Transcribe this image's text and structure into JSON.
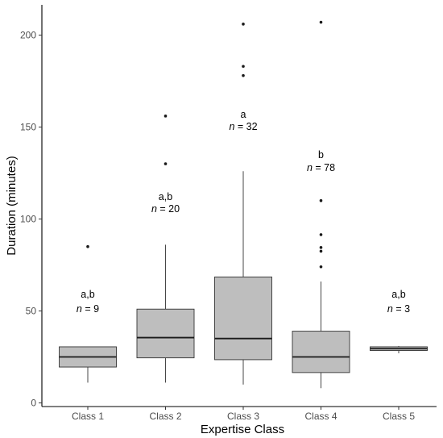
{
  "chart_data": {
    "type": "box",
    "xlabel": "Expertise Class",
    "ylabel": "Duration (minutes)",
    "ylim": [
      0,
      210
    ],
    "y_ticks": [
      0,
      50,
      100,
      150,
      200
    ],
    "grid": false,
    "box_fill": "#bebebe",
    "box_stroke": "#333333",
    "categories": [
      "Class 1",
      "Class 2",
      "Class 3",
      "Class 4",
      "Class 5"
    ],
    "boxes": [
      {
        "category": "Class 1",
        "q1": 19.5,
        "median": 25,
        "q3": 30.5,
        "whisker_low": 11,
        "whisker_high": 30.5,
        "outliers": [
          85
        ],
        "group": "a,b",
        "n_label": "n",
        "n_value": "= 9"
      },
      {
        "category": "Class 2",
        "q1": 24.5,
        "median": 35.5,
        "q3": 51,
        "whisker_low": 11,
        "whisker_high": 86,
        "outliers": [
          130,
          156
        ],
        "group": "a,b",
        "n_label": "n",
        "n_value": "= 20"
      },
      {
        "category": "Class 3",
        "q1": 23.5,
        "median": 35,
        "q3": 68.5,
        "whisker_low": 10,
        "whisker_high": 126,
        "outliers": [
          178,
          183,
          206
        ],
        "group": "a",
        "n_label": "n",
        "n_value": "= 32"
      },
      {
        "category": "Class 4",
        "q1": 16.5,
        "median": 25,
        "q3": 39,
        "whisker_low": 8,
        "whisker_high": 66,
        "outliers": [
          74,
          82.5,
          84.5,
          91.5,
          110,
          207
        ],
        "group": "b",
        "n_label": "n",
        "n_value": "= 78"
      },
      {
        "category": "Class 5",
        "q1": 28.5,
        "median": 29.5,
        "q3": 30.5,
        "whisker_low": 27,
        "whisker_high": 31,
        "outliers": [],
        "group": "a,b",
        "n_label": "n",
        "n_value": "= 3"
      }
    ]
  }
}
